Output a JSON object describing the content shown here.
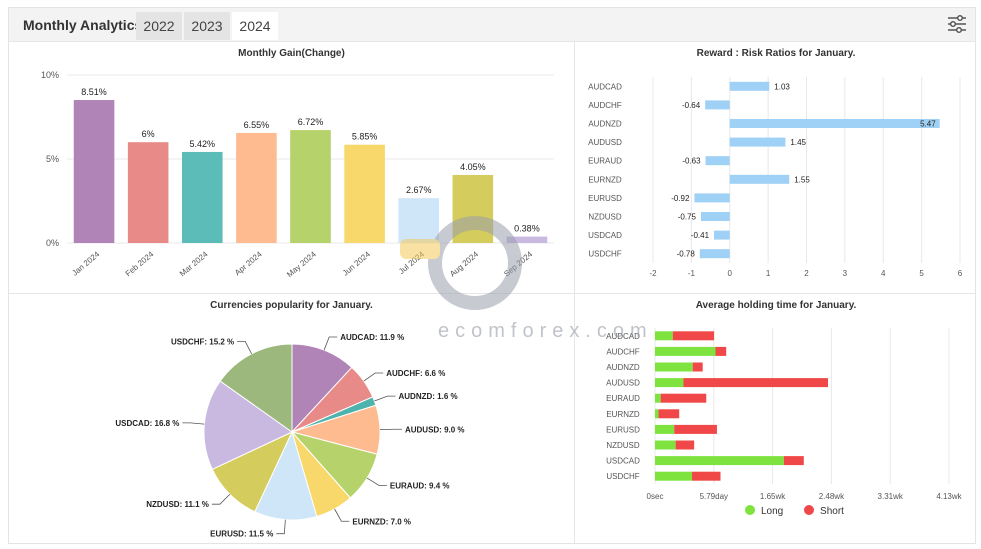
{
  "header": {
    "title": "Monthly Analytics",
    "tabs": [
      {
        "label": "2022",
        "active": false
      },
      {
        "label": "2023",
        "active": false
      },
      {
        "label": "2024",
        "active": true
      }
    ],
    "settings_icon": "sliders-icon"
  },
  "watermark": {
    "text": "ecomforex.com"
  },
  "colors": {
    "long": "#7ee33f",
    "short": "#f04848",
    "rr_bar": "#9fd0f5",
    "grid": "#e8e8e8"
  },
  "chart_data": [
    {
      "type": "bar",
      "title": "Monthly Gain(Change)",
      "categories": [
        "Jan 2024",
        "Feb 2024",
        "Mar 2024",
        "Apr 2024",
        "May 2024",
        "Jun 2024",
        "Jul 2024",
        "Aug 2024",
        "Sep 2024"
      ],
      "values": [
        8.51,
        6,
        5.42,
        6.55,
        6.72,
        5.85,
        2.67,
        4.05,
        0.38
      ],
      "labels": [
        "8.51%",
        "6%",
        "5.42%",
        "6.55%",
        "6.72%",
        "5.85%",
        "2.67%",
        "4.05%",
        "0.38%"
      ],
      "colors": [
        "#b084b6",
        "#e88a88",
        "#5bbcb8",
        "#fdbb8f",
        "#b5d36a",
        "#f8d86a",
        "#cfe6f8",
        "#d4cc5c",
        "#c9b8e0"
      ],
      "yticks": [
        "0%",
        "5%",
        "10%"
      ],
      "ylim": [
        0,
        10
      ],
      "grid": true
    },
    {
      "type": "bar",
      "orientation": "horizontal",
      "title": "Reward : Risk Ratios for January.",
      "categories": [
        "AUDCAD",
        "AUDCHF",
        "AUDNZD",
        "AUDUSD",
        "EURAUD",
        "EURNZD",
        "EURUSD",
        "NZDUSD",
        "USDCAD",
        "USDCHF"
      ],
      "values": [
        1.03,
        -0.64,
        5.47,
        1.45,
        -0.63,
        1.55,
        -0.92,
        -0.75,
        -0.41,
        -0.78
      ],
      "labels": [
        "1.03",
        "-0.64",
        "5.47",
        "1.45",
        "-0.63",
        "1.55",
        "-0.92",
        "-0.75",
        "-0.41",
        "-0.78"
      ],
      "xticks": [
        "-2",
        "-1",
        "0",
        "1",
        "2",
        "3",
        "4",
        "5",
        "6"
      ],
      "xlim": [
        -2,
        6
      ],
      "grid": true
    },
    {
      "type": "pie",
      "title": "Currencies popularity for January.",
      "slices": [
        {
          "label": "AUDCAD: 11.9 %",
          "value": 11.9,
          "color": "#b084b6"
        },
        {
          "label": "AUDCHF: 6.6 %",
          "value": 6.6,
          "color": "#e88a88"
        },
        {
          "label": "AUDNZD: 1.6 %",
          "value": 1.6,
          "color": "#4fb3ad"
        },
        {
          "label": "AUDUSD: 9.0 %",
          "value": 9.0,
          "color": "#fdbb8f"
        },
        {
          "label": "EURAUD: 9.4 %",
          "value": 9.4,
          "color": "#b5d36a"
        },
        {
          "label": "EURNZD: 7.0 %",
          "value": 7.0,
          "color": "#f8d86a"
        },
        {
          "label": "EURUSD: 11.5 %",
          "value": 11.5,
          "color": "#cfe6f8"
        },
        {
          "label": "NZDUSD: 11.1 %",
          "value": 11.1,
          "color": "#d4cc5c"
        },
        {
          "label": "USDCAD: 16.8 %",
          "value": 16.8,
          "color": "#c9b8e0"
        },
        {
          "label": "USDCHF: 15.2 %",
          "value": 15.2,
          "color": "#9cb87c"
        }
      ]
    },
    {
      "type": "bar",
      "orientation": "horizontal",
      "stacked": true,
      "title": "Average holding time for January.",
      "categories": [
        "AUDCAD",
        "AUDCHF",
        "AUDNZD",
        "AUDUSD",
        "EURAUD",
        "EURNZD",
        "EURUSD",
        "NZDUSD",
        "USDCAD",
        "USDCHF"
      ],
      "x_unit": "weeks",
      "xticks": [
        "0sec",
        "5.79day",
        "1.65wk",
        "2.48wk",
        "3.31wk",
        "4.13wk"
      ],
      "xlim": [
        0,
        4.13
      ],
      "series": [
        {
          "name": "Long",
          "color": "#7ee33f",
          "values": [
            0.25,
            0.85,
            0.53,
            0.4,
            0.08,
            0.05,
            0.27,
            0.29,
            1.81,
            0.52
          ]
        },
        {
          "name": "Short",
          "color": "#f04848",
          "values": [
            0.58,
            0.15,
            0.14,
            2.03,
            0.64,
            0.29,
            0.6,
            0.26,
            0.28,
            0.4
          ]
        }
      ],
      "legend": "bottom",
      "grid": true
    }
  ]
}
